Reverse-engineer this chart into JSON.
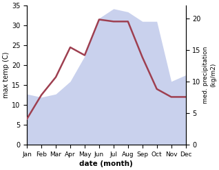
{
  "months": [
    "Jan",
    "Feb",
    "Mar",
    "Apr",
    "May",
    "Jun",
    "Jul",
    "Aug",
    "Sep",
    "Oct",
    "Nov",
    "Dec"
  ],
  "month_indices": [
    0,
    1,
    2,
    3,
    4,
    5,
    6,
    7,
    8,
    9,
    10,
    11
  ],
  "temperature": [
    6.5,
    12.5,
    17.0,
    24.5,
    22.5,
    31.5,
    31.0,
    31.0,
    22.0,
    14.0,
    12.0,
    12.0
  ],
  "precipitation": [
    8.0,
    7.5,
    8.0,
    10.0,
    14.0,
    20.0,
    21.5,
    21.0,
    19.5,
    19.5,
    10.0,
    11.0
  ],
  "temp_color": "#9e3f50",
  "precip_fill_color": "#b8c2e8",
  "precip_fill_alpha": 0.75,
  "xlabel": "date (month)",
  "ylabel_left": "max temp (C)",
  "ylabel_right": "med. precipitation\n(kg/m2)",
  "ylim_left": [
    0,
    35
  ],
  "ylim_right": [
    0,
    22
  ],
  "yticks_left": [
    0,
    5,
    10,
    15,
    20,
    25,
    30,
    35
  ],
  "yticks_right": [
    0,
    5,
    10,
    15,
    20
  ],
  "background_color": "#ffffff"
}
